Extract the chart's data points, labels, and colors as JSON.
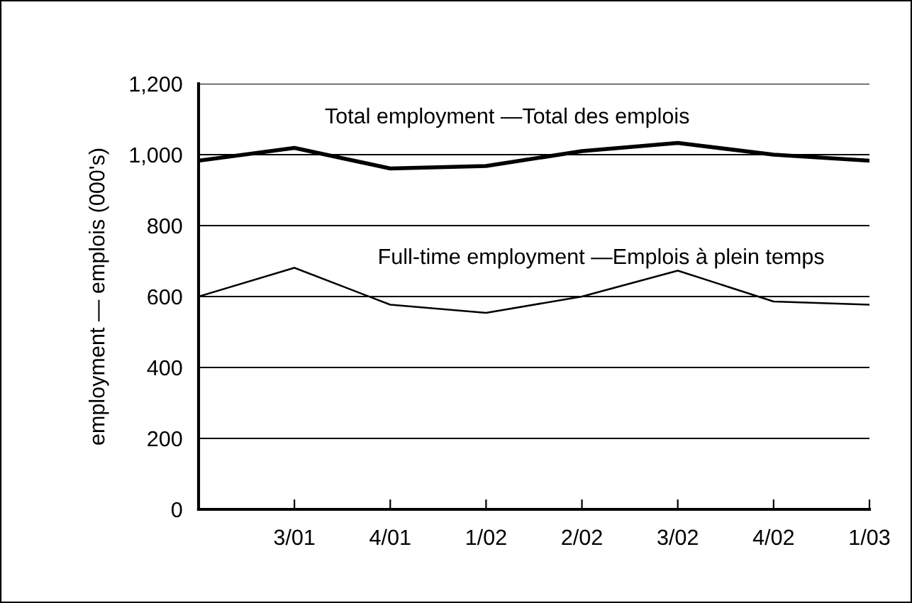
{
  "chart_data": {
    "type": "line",
    "ylabel": "employment — emplois (000's)",
    "categories": [
      null,
      "3/01",
      "4/01",
      "1/02",
      "2/02",
      "3/02",
      "4/02",
      "1/03"
    ],
    "series": [
      {
        "name": "Total employment —Total des emplois",
        "color": "#000000",
        "values": [
          983,
          1019,
          961,
          968,
          1010,
          1033,
          1000,
          983
        ]
      },
      {
        "name": "Full-time employment —Emplois à plein temps",
        "color": "#000000",
        "values": [
          600,
          681,
          577,
          554,
          600,
          673,
          586,
          577
        ]
      }
    ],
    "ylim": [
      0,
      1200
    ],
    "yticks": [
      0,
      {
        "value": 200,
        "label": "200"
      },
      {
        "value": 400,
        "label": "400"
      },
      {
        "value": 600,
        "label": "600"
      },
      {
        "value": 800,
        "label": "800"
      },
      {
        "value": 1000,
        "label": "1,000"
      },
      {
        "value": 1200,
        "label": "1,200"
      }
    ],
    "grid": "y",
    "legend": false,
    "marker": "none",
    "line_style": "solid"
  }
}
